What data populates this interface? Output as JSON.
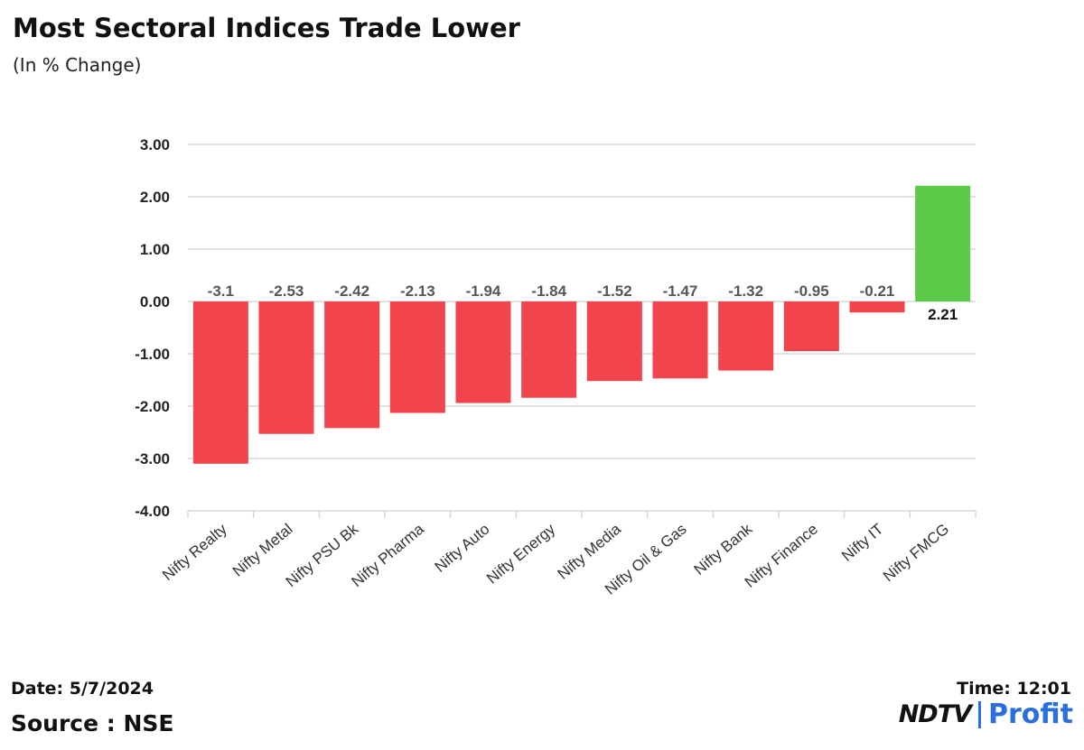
{
  "header": {
    "title": "Most Sectoral Indices Trade Lower",
    "subtitle": "(In % Change)"
  },
  "footer": {
    "date": "Date: 5/7/2024",
    "time": "Time: 12:01",
    "source": "Source : NSE",
    "logo_left": "NDTV",
    "logo_right": "Profit"
  },
  "colors": {
    "negative": "#f2444c",
    "positive": "#5ecb48",
    "grid": "#d9d9d9",
    "label": "#555555",
    "brand": "#2a6fdb"
  },
  "chart_data": {
    "type": "bar",
    "title": "Most Sectoral Indices Trade Lower",
    "ylabel": "In % Change",
    "xlabel": "",
    "ylim": [
      -4,
      3
    ],
    "yticks": [
      "3.00",
      "2.00",
      "1.00",
      "0.00",
      "-1.00",
      "-2.00",
      "-3.00",
      "-4.00"
    ],
    "ytick_values": [
      3,
      2,
      1,
      0,
      -1,
      -2,
      -3,
      -4
    ],
    "grid": true,
    "categories": [
      "Nifty Realty",
      "Nifty Metal",
      "Nifty PSU Bk",
      "Nifty Pharma",
      "Nifty Auto",
      "Nifty Energy",
      "Nifty Media",
      "Nifty Oil & Gas",
      "Nifty Bank",
      "Nifty Finance",
      "Nifty IT",
      "Nifty FMCG"
    ],
    "values": [
      -3.1,
      -2.53,
      -2.42,
      -2.13,
      -1.94,
      -1.84,
      -1.52,
      -1.47,
      -1.32,
      -0.95,
      -0.21,
      2.21
    ],
    "labels": [
      "-3.1",
      "-2.53",
      "-2.42",
      "-2.13",
      "-1.94",
      "-1.84",
      "-1.52",
      "-1.47",
      "-1.32",
      "-0.95",
      "-0.21",
      "2.21"
    ]
  }
}
